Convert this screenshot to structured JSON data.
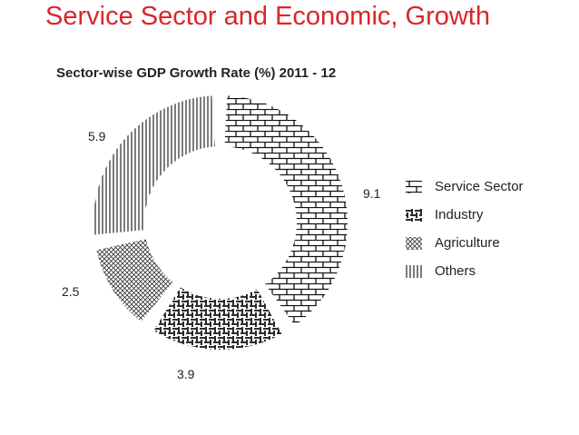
{
  "slide": {
    "title": "Service Sector and Economic, Growth"
  },
  "chart_data": {
    "type": "pie",
    "title": "Sector-wise GDP Growth Rate (%)  2011 - 12",
    "categories": [
      "Service Sector",
      "Industry",
      "Agriculture",
      "Others"
    ],
    "values": [
      9.1,
      3.9,
      2.5,
      5.9
    ],
    "value_labels": [
      "9.1",
      "3.9",
      "2.5",
      "5.9"
    ],
    "legend_position": "right",
    "style": "donut with pattern fills",
    "patterns": [
      "brick",
      "weave",
      "crosshatch",
      "vertical-lines"
    ]
  }
}
